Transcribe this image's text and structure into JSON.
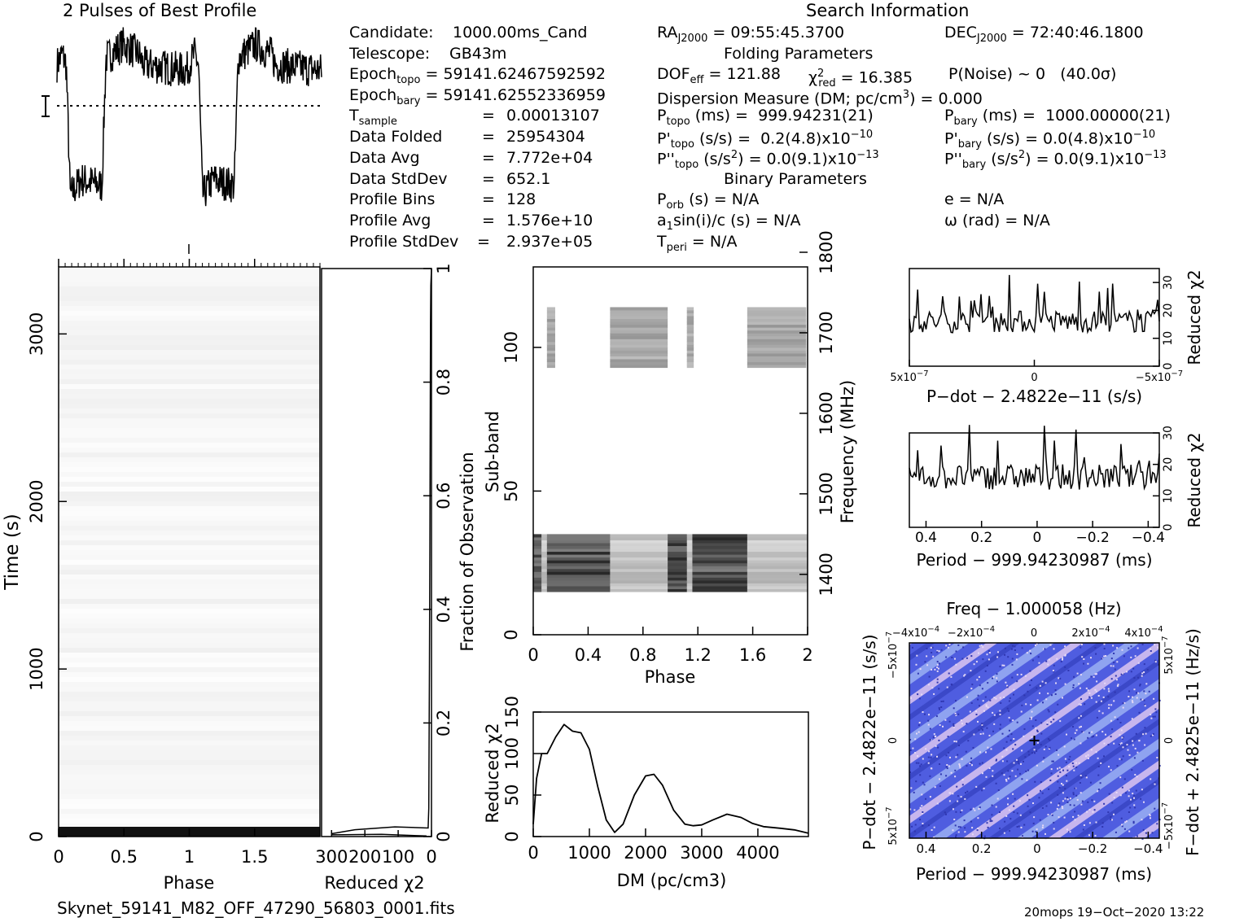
{
  "profile_title": "2 Pulses of Best Profile",
  "search_title": "Search Information",
  "candidate": {
    "label": "Candidate:",
    "value": "1000.00ms_Cand"
  },
  "telescope": {
    "label": "Telescope:",
    "value": "GB43m"
  },
  "epoch_topo": {
    "label": "Epoch",
    "sub": "topo",
    "value": "= 59141.62467592592"
  },
  "epoch_bary": {
    "label": "Epoch",
    "sub": "bary",
    "value": "= 59141.62552336959"
  },
  "tsample": {
    "label": "T",
    "sub": "sample",
    "eq": "=",
    "value": "0.00013107"
  },
  "data_folded": {
    "label": "Data Folded",
    "eq": "=",
    "value": "25954304"
  },
  "data_avg": {
    "label": "Data Avg",
    "eq": "=",
    "value": "7.772e+04"
  },
  "data_stddev": {
    "label": "Data StdDev",
    "eq": "=",
    "value": "652.1"
  },
  "profile_bins": {
    "label": "Profile Bins",
    "eq": "=",
    "value": "128"
  },
  "profile_avg": {
    "label": "Profile Avg",
    "eq": "=",
    "value": "1.576e+10"
  },
  "profile_stddev": {
    "label": "Profile StdDev",
    "eq": "=",
    "value": "2.937e+05"
  },
  "ra": {
    "label": "RA",
    "sub": "J2000",
    "value": "= 09:55:45.3700"
  },
  "dec": {
    "label": "DEC",
    "sub": "J2000",
    "value": "= 72:40:46.1800"
  },
  "folding_title": "Folding Parameters",
  "dof": {
    "label": "DOF",
    "sub": "eff",
    "value": "= 121.88"
  },
  "chi2": {
    "sym": "χ",
    "sup": "2",
    "sub": "red",
    "value": "= 16.385"
  },
  "pnoise": {
    "value": "P(Noise) ~ 0",
    "sigma": "(40.0σ)"
  },
  "dm_line": {
    "pre": "Dispersion Measure (DM; pc/cm",
    "sup": "3",
    "post": ") = 0.000"
  },
  "ptopo": {
    "label": "P",
    "sub": "topo",
    "unit": "(ms) =",
    "value": "999.94231(21)"
  },
  "pbary": {
    "label": "P",
    "sub": "bary",
    "unit": "(ms) =",
    "value": "1000.00000(21)"
  },
  "pdtopo": {
    "label": "P'",
    "sub": "topo",
    "unit": "(s/s) =",
    "value": "0.2(4.8)x10",
    "exp": "−10"
  },
  "pdbary": {
    "label": "P'",
    "sub": "bary",
    "unit": "(s/s) = 0.0(4.8)x10",
    "exp": "−10"
  },
  "pddtopo": {
    "label": "P''",
    "sub": "topo",
    "unit": "(s/s",
    "sup": "2",
    "value": ") = 0.0(9.1)x10",
    "exp": "−13"
  },
  "pddbary": {
    "label": "P''",
    "sub": "bary",
    "unit": "(s/s",
    "sup": "2",
    "value": ") = 0.0(9.1)x10",
    "exp": "−13"
  },
  "binary_title": "Binary Parameters",
  "porb": {
    "label": "P",
    "sub": "orb",
    "value": "(s) = N/A"
  },
  "ecc": {
    "value": "e = N/A"
  },
  "a1": {
    "pre": "a",
    "sub": "1",
    "value": "sin(i)/c (s) = N/A"
  },
  "omega": {
    "value": "ω (rad) = N/A"
  },
  "tperi": {
    "label": "T",
    "sub": "peri",
    "value": "= N/A"
  },
  "filename": "Skynet_59141_M82_OFF_47290_56803_0001.fits",
  "footer_right": "20mops 19−Oct−2020 13:22",
  "chart_data": [
    {
      "type": "line",
      "id": "profile",
      "title": "2 Pulses of Best Profile",
      "x_range": [
        0,
        2
      ],
      "shape": [
        [
          0,
          0.85
        ],
        [
          0.04,
          0.9
        ],
        [
          0.07,
          0.85
        ],
        [
          0.1,
          0.2
        ],
        [
          0.18,
          0.28
        ],
        [
          0.34,
          0.25
        ],
        [
          0.37,
          0.88
        ],
        [
          0.5,
          0.95
        ],
        [
          0.62,
          0.9
        ],
        [
          0.65,
          0.85
        ],
        [
          0.98,
          0.82
        ],
        [
          1.0,
          0.85
        ],
        [
          1.04,
          0.9
        ],
        [
          1.07,
          0.85
        ],
        [
          1.1,
          0.2
        ],
        [
          1.18,
          0.28
        ],
        [
          1.34,
          0.25
        ],
        [
          1.37,
          0.88
        ],
        [
          1.5,
          0.95
        ],
        [
          1.62,
          0.9
        ],
        [
          1.65,
          0.85
        ],
        [
          2.0,
          0.82
        ]
      ]
    },
    {
      "type": "heatmap",
      "id": "time-phase",
      "xlabel": "Phase",
      "ylabel": "Time (s)",
      "x_range": [
        0,
        2
      ],
      "y_range": [
        0,
        3400
      ],
      "x_ticks": [
        "0",
        "0.5",
        "1",
        "1.5"
      ],
      "x_tick_values": [
        0,
        0.5,
        1,
        1.5
      ],
      "y_ticks": [
        "0",
        "1000",
        "2000",
        "3000"
      ],
      "y_tick_values": [
        0,
        1000,
        2000,
        3000
      ]
    },
    {
      "type": "line",
      "id": "chi2-time",
      "xlabel": "Reduced χ2",
      "ylabel": "Fraction of Observation",
      "x_range": [
        0,
        330
      ],
      "y_range": [
        0,
        1
      ],
      "x_ticks": [
        "300",
        "200",
        "100",
        "0"
      ],
      "x_tick_values": [
        300,
        200,
        100,
        0
      ],
      "y_ticks": [
        "0",
        "0.2",
        "0.4",
        "0.6",
        "0.8",
        "1"
      ],
      "y_tick_values": [
        0,
        0.2,
        0.4,
        0.6,
        0.8,
        1
      ],
      "points": [
        [
          300,
          0.005
        ],
        [
          230,
          0.012
        ],
        [
          110,
          0.017
        ],
        [
          10,
          0.015
        ],
        [
          8,
          0.05
        ],
        [
          6,
          0.3
        ],
        [
          5,
          0.5
        ],
        [
          4,
          0.7
        ],
        [
          3,
          0.9
        ],
        [
          2,
          0.97
        ],
        [
          0,
          1.0
        ]
      ],
      "points2": [
        [
          300,
          0.003
        ],
        [
          150,
          0.004
        ],
        [
          15,
          0.001
        ]
      ]
    },
    {
      "type": "heatmap",
      "id": "subband-phase",
      "xlabel": "Phase",
      "ylabel": "Sub-band",
      "y2label": "Frequency (MHz)",
      "x_range": [
        0,
        2
      ],
      "y_range": [
        0,
        128
      ],
      "y2_range": [
        1325,
        1800
      ],
      "x_ticks": [
        "0",
        "0.4",
        "0.8",
        "1.2",
        "1.6",
        "2"
      ],
      "x_tick_values": [
        0,
        0.4,
        0.8,
        1.2,
        1.6,
        2
      ],
      "y_ticks": [
        "0",
        "50",
        "100"
      ],
      "y_tick_values": [
        0,
        50,
        100
      ],
      "y2_ticks": [
        "1400",
        "1500",
        "1600",
        "1700",
        "1800"
      ],
      "y2_tick_values": [
        1400,
        1500,
        1600,
        1700,
        1800
      ],
      "upper_band": [
        93,
        114
      ],
      "lower_band": [
        15,
        35
      ],
      "upper_blocks": [
        [
          0.1,
          0.16
        ],
        [
          0.56,
          0.98
        ],
        [
          1.12,
          1.17
        ],
        [
          1.56,
          1.99
        ]
      ],
      "dark_blocks": [
        [
          0,
          0.06
        ],
        [
          0.1,
          0.56
        ],
        [
          0.98,
          1.12
        ],
        [
          1.16,
          1.56
        ]
      ]
    },
    {
      "type": "line",
      "id": "chi2-dm",
      "xlabel": "DM (pc/cm3)",
      "ylabel": "Reduced χ2",
      "x_range": [
        0,
        4900
      ],
      "y_range": [
        0,
        150
      ],
      "x_ticks": [
        "0",
        "1000",
        "2000",
        "3000",
        "4000"
      ],
      "x_tick_values": [
        0,
        1000,
        2000,
        3000,
        4000
      ],
      "y_ticks": [
        "0",
        "50",
        "100",
        "150"
      ],
      "y_tick_values": [
        0,
        50,
        100,
        150
      ],
      "points": [
        [
          0,
          15
        ],
        [
          60,
          70
        ],
        [
          150,
          100
        ],
        [
          250,
          100
        ],
        [
          400,
          120
        ],
        [
          550,
          135
        ],
        [
          700,
          127
        ],
        [
          850,
          125
        ],
        [
          1000,
          105
        ],
        [
          1150,
          60
        ],
        [
          1300,
          20
        ],
        [
          1450,
          5
        ],
        [
          1600,
          15
        ],
        [
          1800,
          50
        ],
        [
          2000,
          73
        ],
        [
          2150,
          75
        ],
        [
          2300,
          62
        ],
        [
          2500,
          32
        ],
        [
          2700,
          15
        ],
        [
          2850,
          13
        ],
        [
          3000,
          14
        ],
        [
          3200,
          20
        ],
        [
          3450,
          27
        ],
        [
          3700,
          23
        ],
        [
          3900,
          16
        ],
        [
          4100,
          12
        ],
        [
          4400,
          10
        ],
        [
          4650,
          8
        ],
        [
          4900,
          4
        ]
      ]
    },
    {
      "type": "line",
      "id": "chi2-pdot",
      "xlabel": "P−dot − 2.4822e−11 (s/s)",
      "ylabel": "Reduced χ2",
      "x_range": [
        5e-07,
        -5e-07
      ],
      "y_range": [
        0,
        35
      ],
      "x_ticks": [
        "5x10",
        "0",
        "−5x10"
      ],
      "x_tick_values": [
        5e-07,
        0,
        -5e-07
      ],
      "y_ticks": [
        "0",
        "10",
        "20",
        "30"
      ],
      "y_tick_values": [
        0,
        10,
        20,
        30
      ],
      "mean": 16,
      "noise": 4
    },
    {
      "type": "line",
      "id": "chi2-period",
      "xlabel": "Period − 999.94230987 (ms)",
      "ylabel": "Reduced χ2",
      "x_range": [
        0.46,
        -0.44
      ],
      "y_range": [
        0,
        30
      ],
      "x_ticks": [
        "0.4",
        "0.2",
        "0",
        "−0.2",
        "−0.4"
      ],
      "x_tick_values": [
        0.4,
        0.2,
        0,
        -0.2,
        -0.4
      ],
      "y_ticks": [
        "0",
        "10",
        "20",
        "30"
      ],
      "y_tick_values": [
        0,
        10,
        20,
        30
      ],
      "mean": 16,
      "noise": 4
    },
    {
      "type": "heatmap",
      "id": "period-pdot",
      "title": "Freq − 1.000058 (Hz)",
      "xlabel": "Period − 999.94230987 (ms)",
      "ylabel": "P−dot − 2.4822e−11 (s/s)",
      "y2label": "F−dot + 2.4825e−11 (Hz/s)",
      "x_ticks": [
        "0.4",
        "0.2",
        "0",
        "−0.2",
        "−0.4"
      ],
      "x_tick_values": [
        0.4,
        0.2,
        0,
        -0.2,
        -0.4
      ],
      "x2_ticks": [
        "−4x10",
        "−2x10",
        "0",
        "2x10",
        "4x10"
      ],
      "y_ticks": [
        "−5x10",
        "0",
        "5x10"
      ],
      "y2_ticks": [
        "5x10",
        "0",
        "−5x10"
      ],
      "best": [
        0,
        0
      ]
    }
  ]
}
